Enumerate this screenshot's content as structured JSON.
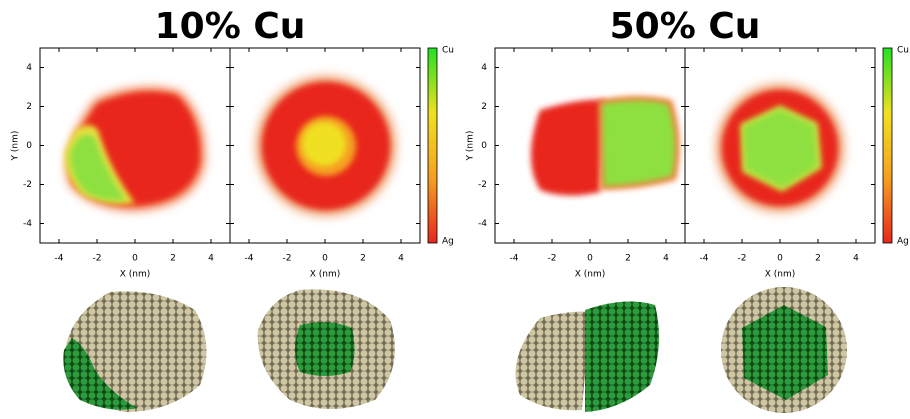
{
  "chart_data": [
    {
      "type": "heatmap",
      "title": "10% Cu",
      "xlabel": "X (nm)",
      "ylabel": "Y (nm)",
      "xlim": [
        -5,
        5
      ],
      "ylim": [
        -5,
        5
      ],
      "xticks": [
        -4,
        -2,
        0,
        2,
        4
      ],
      "yticks": [
        -4,
        -2,
        0,
        2,
        4
      ],
      "colorbar": {
        "top": "Cu",
        "bottom": "Ag",
        "colors": [
          "#e8261e",
          "#f5a020",
          "#f0e020",
          "#22e022"
        ]
      }
    },
    {
      "type": "heatmap",
      "title": "50% Cu",
      "xlabel": "X (nm)",
      "ylabel": "Y (nm)",
      "xlim": [
        -5,
        5
      ],
      "ylim": [
        -5,
        5
      ],
      "xticks": [
        -4,
        -2,
        0,
        2,
        4
      ],
      "yticks": [
        -4,
        -2,
        0,
        2,
        4
      ],
      "colorbar": {
        "top": "Cu",
        "bottom": "Ag",
        "colors": [
          "#e8261e",
          "#f5a020",
          "#f0e020",
          "#22e022"
        ]
      }
    }
  ]
}
